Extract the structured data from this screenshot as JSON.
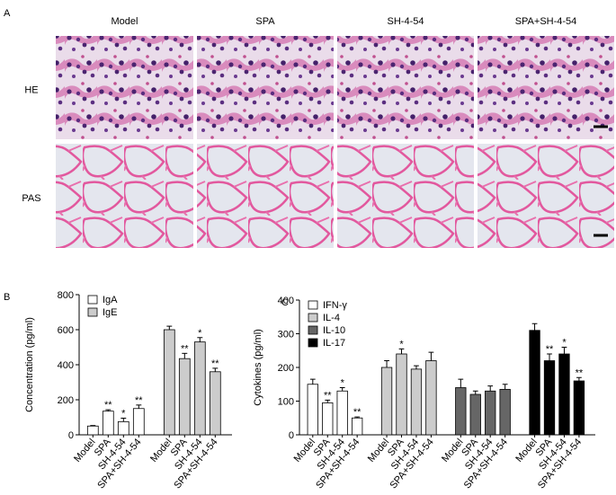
{
  "panel_a": {
    "label": "A",
    "columns": [
      "Model",
      "SPA",
      "SH-4-54",
      "SPA+SH-4-54"
    ],
    "rows": [
      "HE",
      "PAS"
    ]
  },
  "chart_data": [
    {
      "type": "bar",
      "panel_label": "B",
      "ylabel": "Concentration (pg/ml)",
      "categories": [
        "Model",
        "SPA",
        "SH-4-54",
        "SPA+SH-4-54"
      ],
      "series": [
        {
          "name": "IgA",
          "color": "#ffffff",
          "values": [
            50,
            135,
            75,
            150
          ],
          "errors": [
            3,
            8,
            20,
            20
          ],
          "significance": [
            null,
            "**",
            "*",
            "**"
          ]
        },
        {
          "name": "IgE",
          "color": "#cccccc",
          "values": [
            600,
            435,
            530,
            360
          ],
          "errors": [
            20,
            30,
            25,
            20
          ],
          "significance": [
            null,
            "**",
            "*",
            "**"
          ]
        }
      ],
      "ylim": [
        0,
        800
      ],
      "yticks": [
        0,
        200,
        400,
        600,
        800
      ],
      "legend": "upper left"
    },
    {
      "type": "bar",
      "panel_label": "C",
      "ylabel": "Cytokines (pg/ml)",
      "categories": [
        "Model",
        "SPA",
        "SH-4-54",
        "SPA+SH-4-54"
      ],
      "series": [
        {
          "name": "IFN-γ",
          "color": "#ffffff",
          "values": [
            150,
            95,
            130,
            50
          ],
          "errors": [
            15,
            8,
            10,
            3
          ],
          "significance": [
            null,
            "**",
            "*",
            "**"
          ]
        },
        {
          "name": "IL-4",
          "color": "#cccccc",
          "values": [
            200,
            240,
            195,
            220
          ],
          "errors": [
            20,
            15,
            10,
            25
          ],
          "significance": [
            null,
            "*",
            null,
            null
          ]
        },
        {
          "name": "IL-10",
          "color": "#666666",
          "values": [
            140,
            120,
            130,
            135
          ],
          "errors": [
            25,
            10,
            15,
            15
          ],
          "significance": [
            null,
            null,
            null,
            null
          ]
        },
        {
          "name": "IL-17",
          "color": "#000000",
          "values": [
            310,
            220,
            240,
            160
          ],
          "errors": [
            20,
            20,
            20,
            10
          ],
          "significance": [
            null,
            "**",
            "*",
            "**"
          ]
        }
      ],
      "ylim": [
        0,
        400
      ],
      "yticks": [
        0,
        100,
        200,
        300,
        400
      ],
      "legend": "upper left"
    }
  ]
}
